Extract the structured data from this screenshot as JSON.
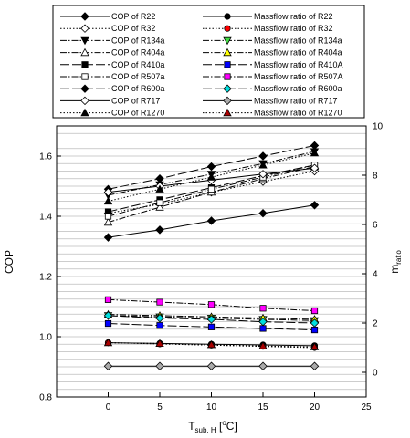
{
  "chart_data": {
    "type": "line",
    "title": "",
    "x": [
      0,
      5,
      10,
      15,
      20
    ],
    "xlim": [
      -5,
      25
    ],
    "xticks": [
      0,
      5,
      10,
      15,
      20,
      25
    ],
    "xlabel": "T",
    "xlabel_sub": "sub, H",
    "xlabel_unit_open": " [",
    "xlabel_unit_deg": "o",
    "xlabel_unit_close": "C]",
    "y_left": {
      "label": "COP",
      "lim": [
        0.8,
        1.7
      ],
      "ticks": [
        "0.8",
        "1.0",
        "1.2",
        "1.4",
        "1.6"
      ]
    },
    "y_right": {
      "label": "m",
      "label_sub": "ratio",
      "lim": [
        -1,
        10
      ],
      "ticks": [
        "0",
        "2",
        "4",
        "6",
        "8",
        "10"
      ]
    },
    "grid": true,
    "legend_position": "top",
    "series": [
      {
        "name": "COP of R22",
        "axis": "left",
        "values": [
          1.33,
          1.355,
          1.385,
          1.41,
          1.437
        ],
        "marker": "diamond",
        "fill": "#000000",
        "dash": "solid"
      },
      {
        "name": "COP of R32",
        "axis": "left",
        "values": [
          1.41,
          1.44,
          1.48,
          1.515,
          1.55
        ],
        "marker": "diamond",
        "fill": "#ffffff",
        "dash": "dot"
      },
      {
        "name": "COP of R134a",
        "axis": "left",
        "values": [
          1.47,
          1.505,
          1.54,
          1.575,
          1.615
        ],
        "marker": "triangle-down",
        "fill": "#000000",
        "dash": "dashdot"
      },
      {
        "name": "COP of R404a",
        "axis": "left",
        "values": [
          1.38,
          1.43,
          1.48,
          1.525,
          1.565
        ],
        "marker": "triangle-up",
        "fill": "#ffffff",
        "dash": "dashdot"
      },
      {
        "name": "COP of R410a",
        "axis": "left",
        "values": [
          1.415,
          1.455,
          1.495,
          1.535,
          1.57
        ],
        "marker": "square",
        "fill": "#000000",
        "dash": "longdash"
      },
      {
        "name": "COP of R507a",
        "axis": "left",
        "values": [
          1.4,
          1.445,
          1.49,
          1.53,
          1.57
        ],
        "marker": "square",
        "fill": "#ffffff",
        "dash": "dashdot"
      },
      {
        "name": "COP of R600a",
        "axis": "left",
        "values": [
          1.49,
          1.525,
          1.565,
          1.6,
          1.635
        ],
        "marker": "diamond",
        "fill": "#000000",
        "dash": "longdash"
      },
      {
        "name": "COP of R717",
        "axis": "left",
        "values": [
          1.48,
          1.5,
          1.52,
          1.54,
          1.56
        ],
        "marker": "diamond",
        "fill": "#ffffff",
        "dash": "solid"
      },
      {
        "name": "COP of R1270",
        "axis": "left",
        "values": [
          1.45,
          1.49,
          1.53,
          1.57,
          1.61
        ],
        "marker": "triangle-up",
        "fill": "#000000",
        "dash": "dot"
      },
      {
        "name": "Massflow ratio of R22",
        "axis": "right",
        "values": [
          1.2,
          1.17,
          1.14,
          1.11,
          1.08
        ],
        "marker": "circle",
        "fill": "#000000",
        "dash": "solid"
      },
      {
        "name": "Massflow ratio of R32",
        "axis": "right",
        "values": [
          1.2,
          1.15,
          1.1,
          1.05,
          1.0
        ],
        "marker": "circle",
        "fill": "#ff0000",
        "dash": "dot"
      },
      {
        "name": "Massflow ratio of R134a",
        "axis": "right",
        "values": [
          2.3,
          2.25,
          2.2,
          2.15,
          2.1
        ],
        "marker": "triangle-down",
        "fill": "#44dd44",
        "dash": "dashdot"
      },
      {
        "name": "Massflow ratio of R404a",
        "axis": "right",
        "values": [
          2.35,
          2.3,
          2.25,
          2.2,
          2.15
        ],
        "marker": "triangle-up",
        "fill": "#ffff00",
        "dash": "dashdot"
      },
      {
        "name": "Massflow ratio of R410A",
        "axis": "right",
        "values": [
          1.98,
          1.9,
          1.84,
          1.78,
          1.72
        ],
        "marker": "square",
        "fill": "#0000ff",
        "dash": "longdash"
      },
      {
        "name": "Massflow ratio of R507A",
        "axis": "right",
        "values": [
          2.95,
          2.85,
          2.75,
          2.6,
          2.5
        ],
        "marker": "square",
        "fill": "#ff00ff",
        "dash": "dashdot"
      },
      {
        "name": "Massflow ratio of R600a",
        "axis": "right",
        "values": [
          2.3,
          2.2,
          2.15,
          2.05,
          2.0
        ],
        "marker": "diamond",
        "fill": "#00dddd",
        "dash": "longdash"
      },
      {
        "name": "Massflow ratio of R717",
        "axis": "right",
        "values": [
          0.25,
          0.25,
          0.25,
          0.25,
          0.25
        ],
        "marker": "diamond",
        "fill": "#aaaaaa",
        "dash": "solid"
      },
      {
        "name": "Massflow ratio of R1270",
        "axis": "right",
        "values": [
          1.2,
          1.17,
          1.12,
          1.07,
          1.03
        ],
        "marker": "triangle-up",
        "fill": "#aa0000",
        "dash": "dot"
      }
    ]
  }
}
